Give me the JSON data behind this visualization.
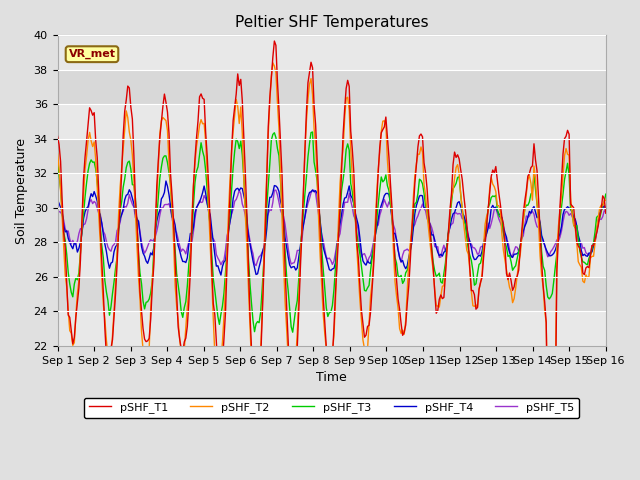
{
  "title": "Peltier SHF Temperatures",
  "xlabel": "Time",
  "ylabel": "Soil Temperature",
  "ylim": [
    22,
    40
  ],
  "n_days": 15,
  "x_tick_labels": [
    "Sep 1",
    "Sep 2",
    "Sep 3",
    "Sep 4",
    "Sep 5",
    "Sep 6",
    "Sep 7",
    "Sep 8",
    "Sep 9",
    "Sep 10",
    "Sep 11",
    "Sep 12",
    "Sep 13",
    "Sep 14",
    "Sep 15",
    "Sep 16"
  ],
  "colors": {
    "pSHF_T1": "#dd0000",
    "pSHF_T2": "#ff8800",
    "pSHF_T3": "#00cc00",
    "pSHF_T4": "#0000cc",
    "pSHF_T5": "#9933cc"
  },
  "legend_labels": [
    "pSHF_T1",
    "pSHF_T2",
    "pSHF_T3",
    "pSHF_T4",
    "pSHF_T5"
  ],
  "annotation_text": "VR_met",
  "bg_color": "#e8e8e8",
  "line_width": 1.0,
  "title_fontsize": 11,
  "axis_fontsize": 9,
  "tick_fontsize": 8
}
